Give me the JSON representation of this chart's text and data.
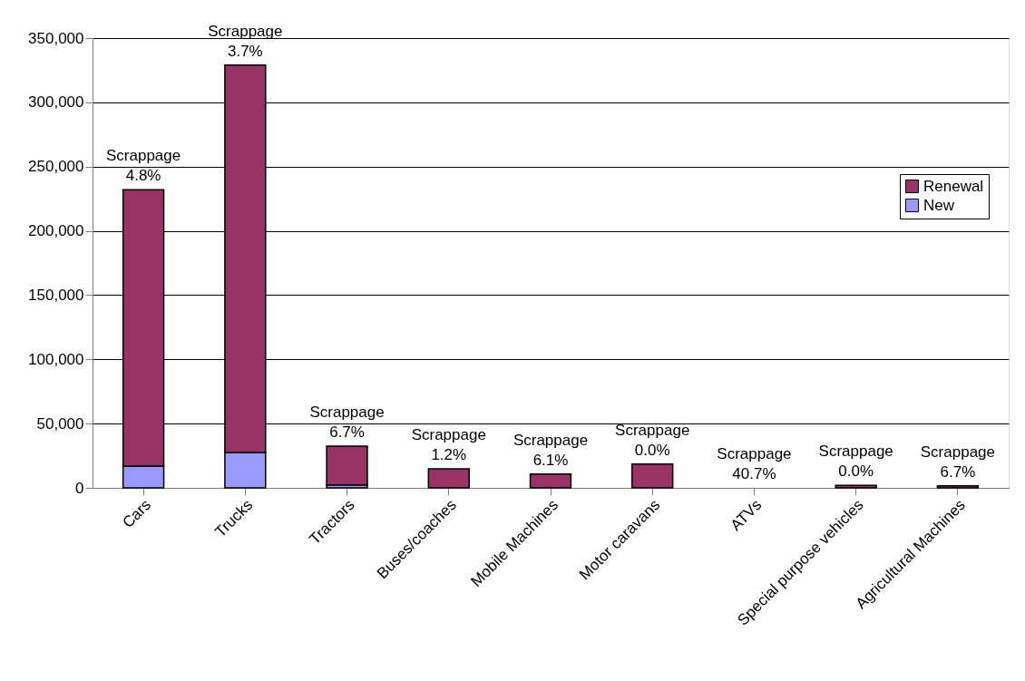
{
  "chart_data": {
    "type": "bar",
    "stacked": true,
    "categories": [
      "Cars",
      "Trucks",
      "Tractors",
      "Buses/coaches",
      "Mobile Machines",
      "Motor caravans",
      "ATVs",
      "Special purpose vehicles",
      "Agricultural Machines"
    ],
    "series": [
      {
        "name": "New",
        "color": "#9999ff",
        "values": [
          17000,
          27500,
          2300,
          null,
          null,
          null,
          null,
          null,
          null
        ]
      },
      {
        "name": "Renewal",
        "color": "#993366",
        "values": [
          215000,
          301500,
          30200,
          14800,
          10700,
          18500,
          null,
          2000,
          1500
        ]
      }
    ],
    "ylim": [
      0,
      350000
    ],
    "yticks": [
      0,
      {
        "value": 50000,
        "label": "50,000"
      },
      {
        "value": 100000,
        "label": "100,000"
      },
      {
        "value": 150000,
        "label": "150,000"
      },
      {
        "value": 200000,
        "label": "200,000"
      },
      {
        "value": 250000,
        "label": "250,000"
      },
      {
        "value": 300000,
        "label": "300,000"
      },
      {
        "value": 350000,
        "label": "350,000"
      }
    ],
    "grid": "y",
    "legend": "top right",
    "annotations": [
      "Scrappage\n4.8%",
      "Scrappage\n3.7%",
      "Scrappage\n6.7%",
      "Scrappage\n1.2%",
      "Scrappage\n6.1%",
      "Scrappage\n0.0%",
      "Scrappage\n40.7%",
      "Scrappage\n0.0%",
      "Scrappage\n6.7%"
    ]
  }
}
